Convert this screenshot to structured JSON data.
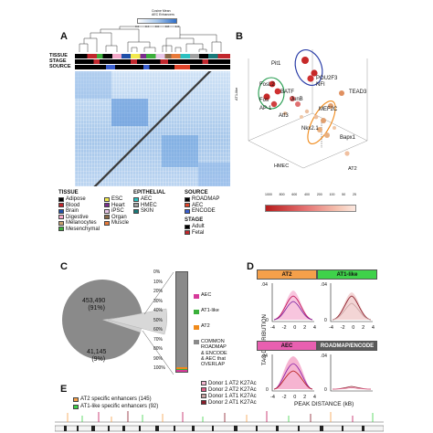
{
  "top_scale": {
    "title_line1": "Cosine Mean",
    "title_line2": "AEC Enhancers",
    "ticks": [
      "0.2",
      "0.4",
      "0.6",
      "0.8",
      "1.0"
    ]
  },
  "panel_a": {
    "letter": "A",
    "row_labels": [
      "TISSUE",
      "STAGE",
      "SOURCE"
    ],
    "legend": {
      "tissue_title": "TISSUE",
      "tissue_items": [
        {
          "label": "Adipose",
          "color": "#000000"
        },
        {
          "label": "Blood",
          "color": "#c1272d"
        },
        {
          "label": "Brain",
          "color": "#1f4fa8"
        },
        {
          "label": "Digestive",
          "color": "#f3a8c8"
        },
        {
          "label": "Melanocytes",
          "color": "#c8a070"
        },
        {
          "label": "Mesenchymal",
          "color": "#3cae3c"
        }
      ],
      "tissue_items2": [
        {
          "label": "ESC",
          "color": "#f2e94e"
        },
        {
          "label": "Heart",
          "color": "#7b2d8e"
        },
        {
          "label": "iPSC",
          "color": "#e8c6e8"
        },
        {
          "label": "Organ",
          "color": "#8a6a48"
        },
        {
          "label": "Muscle",
          "color": "#e87a3a"
        }
      ],
      "epithelial_title": "EPITHELIAL",
      "epithelial_items": [
        {
          "label": "AEC",
          "color": "#2cc0c0"
        },
        {
          "label": "HMEC",
          "color": "#a0a0a0"
        },
        {
          "label": "SKIN",
          "color": "#1a7a7a"
        }
      ],
      "source_title": "SOURCE",
      "source_items": [
        {
          "label": "ROADMAP",
          "color": "#000000"
        },
        {
          "label": "AEC",
          "color": "#e0442a"
        },
        {
          "label": "ENCODE",
          "color": "#3a5fd0"
        }
      ],
      "stage_title": "STAGE",
      "stage_items": [
        {
          "label": "Adult",
          "color": "#000000"
        },
        {
          "label": "Fetal",
          "color": "#c1272d"
        }
      ]
    }
  },
  "panel_b": {
    "letter": "B",
    "labels": {
      "pit1": "Pit1",
      "pou2f3": "POU2F3",
      "nfi": "NFI",
      "fosl2": "FosL2",
      "batf": "BATF",
      "junb": "JunB",
      "fos": "Fos",
      "ap1": "AP-1",
      "atf3": "Atf3",
      "tead3": "TEAD3",
      "mef2c": "MEF2C",
      "nkx21": "Nkx2.1",
      "bapx1": "Bapx1",
      "hmec": "HMEC",
      "at2": "AT2",
      "at1like": "AT1-like"
    },
    "colorbar": {
      "title": "-log10(p)",
      "ticks": [
        "1000",
        "800",
        "600",
        "400",
        "200",
        "100",
        "50",
        "25"
      ],
      "colors": [
        "#c62828",
        "#ef9a9a"
      ]
    }
  },
  "panel_c": {
    "letter": "C",
    "pie_big_value": "453,490",
    "pie_big_pct": "(91%)",
    "pie_small_value": "41,145",
    "pie_small_pct": "(9%)",
    "bar_ticks": [
      "0%",
      "10%",
      "20%",
      "30%",
      "40%",
      "50%",
      "60%",
      "70%",
      "80%",
      "90%",
      "100%"
    ],
    "legend": [
      {
        "label": "AEC",
        "color": "#d63a9a"
      },
      {
        "label": "AT1-like",
        "color": "#3ab03a"
      },
      {
        "label": "AT2",
        "color": "#f08a1a"
      },
      {
        "label": "COMMON\nROADMAP\n& ENCODE\n& AEC that\nOVERLAP",
        "color": "#8a8a8a"
      }
    ]
  },
  "chart_data": {
    "type": "pie",
    "values": [
      453490,
      41145
    ],
    "labels": [
      "453,490 (91%)",
      "41,145 (9%)"
    ],
    "stacked_bar_percent": {
      "AEC": 1.0,
      "AT1-like": 0.8,
      "AT2": 1.2,
      "COMMON ROADMAP & ENCODE & AEC that OVERLAP": 97.0
    }
  },
  "panel_d": {
    "letter": "D",
    "headers": [
      {
        "label": "AT2",
        "color": "#f5a04a"
      },
      {
        "label": "AT1-like",
        "color": "#3fd24a"
      },
      {
        "label": "AEC",
        "color": "#e85fb0"
      },
      {
        "label": "ROADMAP/ENCODE",
        "color": "#5a5a5a"
      }
    ],
    "ylabel": "TAG DISTRIBUTION",
    "xlabel": "PEAK DISTANCE (kB)",
    "xticks": [
      "-4",
      "-2",
      "0",
      "2",
      "4"
    ],
    "yticks": [
      ".04",
      "0"
    ]
  },
  "panel_e": {
    "letter": "E",
    "legend_left": [
      {
        "label": "AT2 specific enhancers (145)",
        "color": "#f5a04a"
      },
      {
        "label": "AT1-like specific enhancers (92)",
        "color": "#3fd24a"
      }
    ],
    "legend_right": [
      {
        "label": "Donor 1 AT2 K27Ac",
        "color": "#f2b6d0"
      },
      {
        "label": "Donor 2 AT2 K27Ac",
        "color": "#e0608a"
      },
      {
        "label": "Donor 1 AT1 K27Ac",
        "color": "#c9a4a4"
      },
      {
        "label": "Donor 2 AT1 K27Ac",
        "color": "#8b1d2a"
      }
    ]
  }
}
